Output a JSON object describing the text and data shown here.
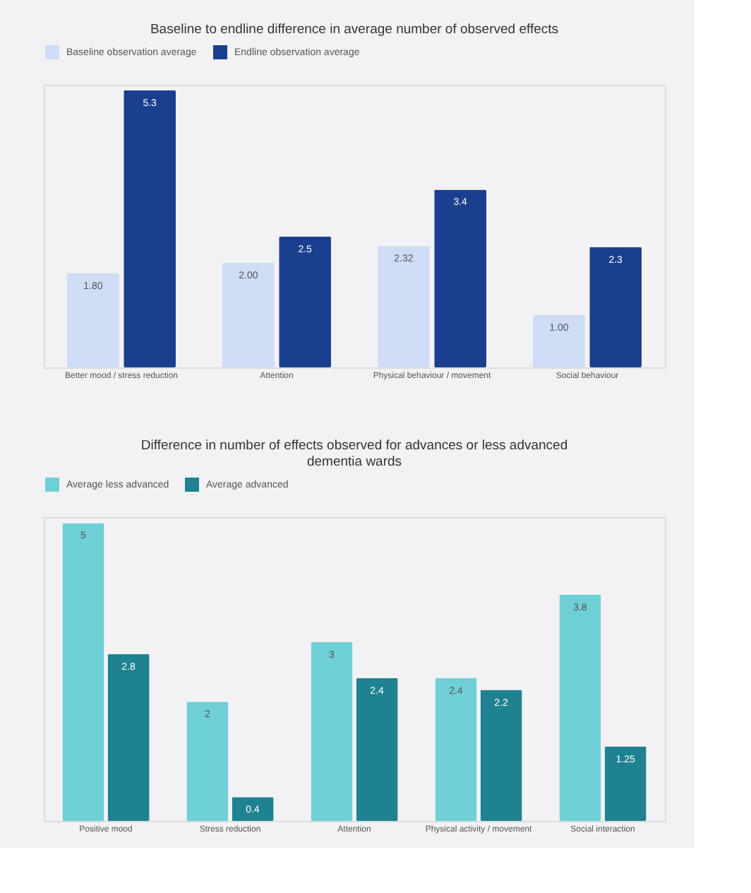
{
  "chart_data": [
    {
      "type": "bar",
      "title": "Baseline to endline difference in average number of observed effects",
      "categories": [
        "Better mood / stress reduction",
        "Attention",
        "Physical behaviour / movement",
        "Social behaviour"
      ],
      "legend": "top",
      "grid": false,
      "tick_labels": "x",
      "data_labels": true,
      "series": [
        {
          "name": "Baseline observation average",
          "color": "#cfdcf5",
          "values": [
            1.8,
            2.0,
            2.32,
            1.0
          ],
          "value_labels": [
            "1.80",
            "2.00",
            "2.32",
            "1.00"
          ]
        },
        {
          "name": "Endline observation average",
          "color": "#1b3f8f",
          "values": [
            5.3,
            2.5,
            3.4,
            2.3
          ]
        }
      ]
    },
    {
      "type": "bar",
      "title": "Difference in number of effects observed for advances or less advanced dementia wards",
      "categories": [
        "Positive mood",
        "Stress reduction",
        "Attention",
        "Physical activity / movement",
        "Social interaction"
      ],
      "legend": "top",
      "grid": false,
      "tick_labels": "x",
      "data_labels": true,
      "series": [
        {
          "name": "Average less advanced",
          "color": "#6fcfd6",
          "values": [
            5,
            2,
            3,
            2.4,
            3.8
          ]
        },
        {
          "name": "Average advanced",
          "color": "#1f8291",
          "values": [
            2.8,
            0.4,
            2.4,
            2.2,
            1.25
          ]
        }
      ]
    }
  ]
}
